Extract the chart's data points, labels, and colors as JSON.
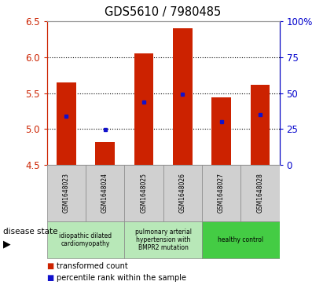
{
  "title": "GDS5610 / 7980485",
  "samples": [
    "GSM1648023",
    "GSM1648024",
    "GSM1648025",
    "GSM1648026",
    "GSM1648027",
    "GSM1648028"
  ],
  "bar_heights": [
    5.65,
    4.82,
    6.05,
    6.4,
    5.44,
    5.62
  ],
  "blue_positions": [
    5.18,
    4.99,
    5.38,
    5.48,
    5.1,
    5.2
  ],
  "ylim": [
    4.5,
    6.5
  ],
  "yticks_left": [
    4.5,
    5.0,
    5.5,
    6.0,
    6.5
  ],
  "yticks_right": [
    0,
    25,
    50,
    75,
    100
  ],
  "bar_color": "#cc2200",
  "blue_color": "#1111cc",
  "bg_color": "#ffffff",
  "ylabel_left_color": "#cc2200",
  "ylabel_right_color": "#0000cc",
  "bar_width": 0.5,
  "grey_bg": "#d0d0d0",
  "light_green_bg": "#b8e8b8",
  "bright_green_bg": "#44cc44",
  "disease_groups": [
    {
      "label": "idiopathic dilated\ncardiomyopathy",
      "cols": [
        0,
        1
      ],
      "bg": "#b8e8b8"
    },
    {
      "label": "pulmonary arterial\nhypertension with\nBMPR2 mutation",
      "cols": [
        2,
        3
      ],
      "bg": "#b8e8b8"
    },
    {
      "label": "healthy control",
      "cols": [
        4,
        5
      ],
      "bg": "#44cc44"
    }
  ]
}
